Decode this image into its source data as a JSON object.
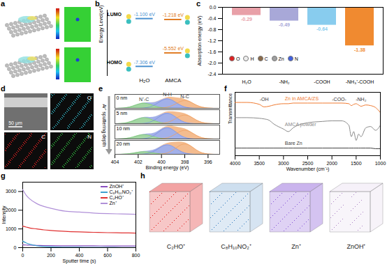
{
  "chart_data": [
    {
      "type": "energy_level",
      "title": "b",
      "ylabel": "Energy Level(eV)",
      "categories": [
        "H₂O",
        "AMCA"
      ],
      "colors": [
        "#4a90d0",
        "#e07a20"
      ],
      "series": [
        {
          "name": "LUMO",
          "values": [
            -1.1,
            -1.218
          ],
          "value_labels": [
            "-1.100 eV",
            "-1.218 eV"
          ]
        },
        {
          "name": "HOMO",
          "values": [
            -7.306,
            -5.552
          ],
          "value_labels": [
            "-7.306 eV",
            "-5.552 eV"
          ]
        }
      ],
      "ylim": [
        -8.5,
        0
      ],
      "tick_labels": false
    },
    {
      "type": "bar",
      "title": "c",
      "ylabel": "Absorption energy (eV)",
      "categories": [
        "H₂O",
        "-NH₂",
        "-COOH",
        "-NH₃⁺-COOH"
      ],
      "values": [
        -0.29,
        -0.49,
        -0.64,
        -1.38
      ],
      "colors": [
        "#e8a0a8",
        "#a8a8d8",
        "#88ccee",
        "#f08a30"
      ],
      "ylim": [
        -2.4,
        0
      ],
      "yticks": [
        -2.4,
        {
          "value": -2,
          "label": "-2.0"
        },
        -1.6,
        -1.2,
        -0.8,
        -0.4,
        {
          "value": 0,
          "label": "0.0"
        }
      ],
      "data_labels": true
    },
    {
      "type": "area",
      "title": "e",
      "xlabel": "Binding energy (eV)",
      "annotation": "Ar⁺ sputtering depth",
      "x": [
        404,
        403.5,
        403,
        402.5,
        402,
        401.5,
        401,
        400.5,
        400,
        399.5,
        399,
        398.5,
        398,
        397.5,
        397,
        396.5,
        396,
        395.5,
        395
      ],
      "xlim": [
        404,
        395
      ],
      "xticks": [
        404,
        402,
        400,
        398,
        396
      ],
      "ylim": [
        0,
        0.75
      ],
      "tick_labels": "x",
      "series": [
        {
          "name": "N⁺-C",
          "color": "#7cc47c"
        },
        {
          "name": "N-H",
          "color": "#7a8fe0"
        },
        {
          "name": "N-C",
          "color": "#f0a060"
        }
      ],
      "depths": [
        {
          "label": "0 nm",
          "values": [
            [
              0,
              0.01,
              0.03,
              0.11,
              0.23,
              0.3,
              0.23,
              0.11,
              0.03,
              0.01,
              0,
              0,
              0,
              0,
              0,
              0,
              0,
              0,
              0
            ],
            [
              0,
              0,
              0,
              0,
              0,
              0.01,
              0.06,
              0.2,
              0.43,
              0.55,
              0.43,
              0.2,
              0.06,
              0.01,
              0,
              0,
              0,
              0,
              0
            ],
            [
              0,
              0,
              0,
              0,
              0,
              0,
              0,
              0,
              0.01,
              0.05,
              0.16,
              0.35,
              0.45,
              0.35,
              0.16,
              0.05,
              0.01,
              0,
              0
            ]
          ]
        },
        {
          "label": "5 nm",
          "values": [
            [
              0,
              0.01,
              0.04,
              0.13,
              0.27,
              0.35,
              0.27,
              0.13,
              0.04,
              0.01,
              0,
              0,
              0,
              0,
              0,
              0,
              0,
              0,
              0
            ],
            [
              0,
              0,
              0,
              0,
              0,
              0.01,
              0.06,
              0.22,
              0.47,
              0.6,
              0.47,
              0.22,
              0.06,
              0.01,
              0,
              0,
              0,
              0,
              0
            ],
            [
              0,
              0,
              0,
              0,
              0,
              0,
              0,
              0,
              0.01,
              0.05,
              0.18,
              0.39,
              0.5,
              0.39,
              0.18,
              0.05,
              0.01,
              0,
              0
            ]
          ]
        },
        {
          "label": "10 nm",
          "values": [
            [
              0,
              0.01,
              0.03,
              0.09,
              0.2,
              0.25,
              0.2,
              0.09,
              0.03,
              0.01,
              0,
              0,
              0,
              0,
              0,
              0,
              0,
              0,
              0
            ],
            [
              0,
              0,
              0,
              0,
              0,
              0.01,
              0.07,
              0.23,
              0.51,
              0.65,
              0.51,
              0.23,
              0.07,
              0.01,
              0,
              0,
              0,
              0,
              0
            ],
            [
              0,
              0,
              0,
              0,
              0,
              0,
              0,
              0,
              0.01,
              0.05,
              0.18,
              0.39,
              0.5,
              0.39,
              0.18,
              0.05,
              0.01,
              0,
              0
            ]
          ]
        },
        {
          "label": "20 nm",
          "values": [
            [
              0,
              0,
              0.02,
              0.05,
              0.12,
              0.15,
              0.12,
              0.05,
              0.02,
              0,
              0,
              0,
              0,
              0,
              0,
              0,
              0,
              0,
              0
            ],
            [
              0,
              0,
              0,
              0,
              0,
              0.01,
              0.06,
              0.2,
              0.43,
              0.55,
              0.43,
              0.2,
              0.06,
              0.01,
              0,
              0,
              0,
              0,
              0
            ],
            [
              0,
              0,
              0,
              0,
              0,
              0,
              0,
              0,
              0.01,
              0.06,
              0.22,
              0.47,
              0.6,
              0.47,
              0.22,
              0.06,
              0.01,
              0,
              0
            ]
          ]
        }
      ]
    },
    {
      "type": "line",
      "title": "f",
      "xlabel": "Wavenumber (cm⁻¹)",
      "ylabel": "Transmittance",
      "x": [
        4000,
        3750,
        3500,
        3400,
        3300,
        3200,
        3000,
        2900,
        2800,
        2500,
        2200,
        2000,
        1800,
        1650,
        1600,
        1550,
        1500,
        1450,
        1400,
        1300,
        1200,
        1100,
        1000
      ],
      "xlim": [
        4000,
        1000
      ],
      "xticks": [
        4000,
        3500,
        3000,
        2500,
        2000,
        1500,
        1000
      ],
      "ylim": [
        0,
        10
      ],
      "tick_labels": "x",
      "series": [
        {
          "name": "Zn in AMCA/ZS",
          "color": "#f07a30",
          "values": [
            8.4,
            8.4,
            8.1,
            7.7,
            7.8,
            8.0,
            8.2,
            8.2,
            8.3,
            8.3,
            8.3,
            8.3,
            8.3,
            8.2,
            7.9,
            8.1,
            8.2,
            8.0,
            7.8,
            8.0,
            7.9,
            7.6,
            6.8
          ]
        },
        {
          "name": "AMCA powder",
          "color": "#8a8a8a",
          "values": [
            6.0,
            6.0,
            5.9,
            5.8,
            5.6,
            5.0,
            4.2,
            3.8,
            4.4,
            5.2,
            5.4,
            5.5,
            5.5,
            4.8,
            3.0,
            3.8,
            2.4,
            3.4,
            3.0,
            4.4,
            4.6,
            4.0,
            4.8
          ]
        },
        {
          "name": "Bare Zn",
          "color": "#404040",
          "values": [
            1.2,
            1.2,
            1.2,
            1.2,
            1.2,
            1.2,
            1.2,
            1.2,
            1.2,
            1.2,
            1.2,
            1.2,
            1.2,
            1.2,
            1.2,
            1.2,
            1.2,
            1.2,
            1.2,
            1.2,
            1.2,
            1.1,
            1.1
          ]
        }
      ],
      "annotations": [
        {
          "text": "-OH",
          "x": 3400,
          "y": 8.9
        },
        {
          "text": "-COO-",
          "x": 1850,
          "y": 8.9
        },
        {
          "text": "-NH₂",
          "x": 1400,
          "y": 8.9
        }
      ]
    },
    {
      "type": "line",
      "title": "g",
      "xlabel": "Sputter time (s)",
      "ylabel": "Intensity",
      "x": [
        0,
        25,
        50,
        100,
        150,
        200,
        300,
        400,
        500,
        600,
        700,
        800
      ],
      "xlim": [
        0,
        800
      ],
      "xticks": [
        0,
        200,
        400,
        600,
        800
      ],
      "ylim": [
        0,
        3500
      ],
      "yticks": [
        0,
        1000,
        2000,
        3000
      ],
      "legend": "top-right",
      "series": [
        {
          "name": "ZnOH⁺",
          "color": "#8a4fbf",
          "values": [
            150,
            140,
            130,
            120,
            110,
            105,
            100,
            95,
            95,
            90,
            90,
            90
          ]
        },
        {
          "name": "C₈H₁₀NO₂⁺",
          "color": "#3fa0d0",
          "values": [
            350,
            250,
            180,
            100,
            60,
            40,
            25,
            20,
            15,
            15,
            10,
            10
          ]
        },
        {
          "name": "C₂HO⁺",
          "color": "#e03030",
          "values": [
            1150,
            1100,
            1050,
            1000,
            950,
            920,
            870,
            840,
            820,
            800,
            790,
            780
          ]
        },
        {
          "name": "Zn⁺",
          "color": "#b090d8",
          "values": [
            3100,
            2800,
            2600,
            2350,
            2200,
            2100,
            1950,
            1900,
            1850,
            1820,
            1800,
            1780
          ]
        }
      ]
    }
  ],
  "figure": {
    "a": {
      "letter": "a"
    },
    "d": {
      "letter": "d",
      "scale_bar": "50 μm",
      "maps": [
        {
          "label": "O",
          "color": "#30c0d0"
        },
        {
          "label": "C",
          "color": "#e02020"
        },
        {
          "label": "N",
          "color": "#30c040"
        }
      ]
    },
    "h": {
      "letter": "h",
      "cubes": [
        {
          "label": "C₂HO⁺",
          "color": "#e02020"
        },
        {
          "label": "C₈H₁₀NO₂⁺",
          "color": "#3a7fc0"
        },
        {
          "label": "Zn⁺",
          "color": "#8a5ad8"
        },
        {
          "label": "ZnOH⁺",
          "color": "#b088c8"
        }
      ]
    },
    "atoms": [
      {
        "label": "O",
        "color": "#e02020"
      },
      {
        "label": "H",
        "color": "#eeeeee"
      },
      {
        "label": "C",
        "color": "#8a6a4a"
      },
      {
        "label": "Zn",
        "color": "#a0a0a0"
      },
      {
        "label": "N",
        "color": "#4060e0"
      }
    ]
  }
}
